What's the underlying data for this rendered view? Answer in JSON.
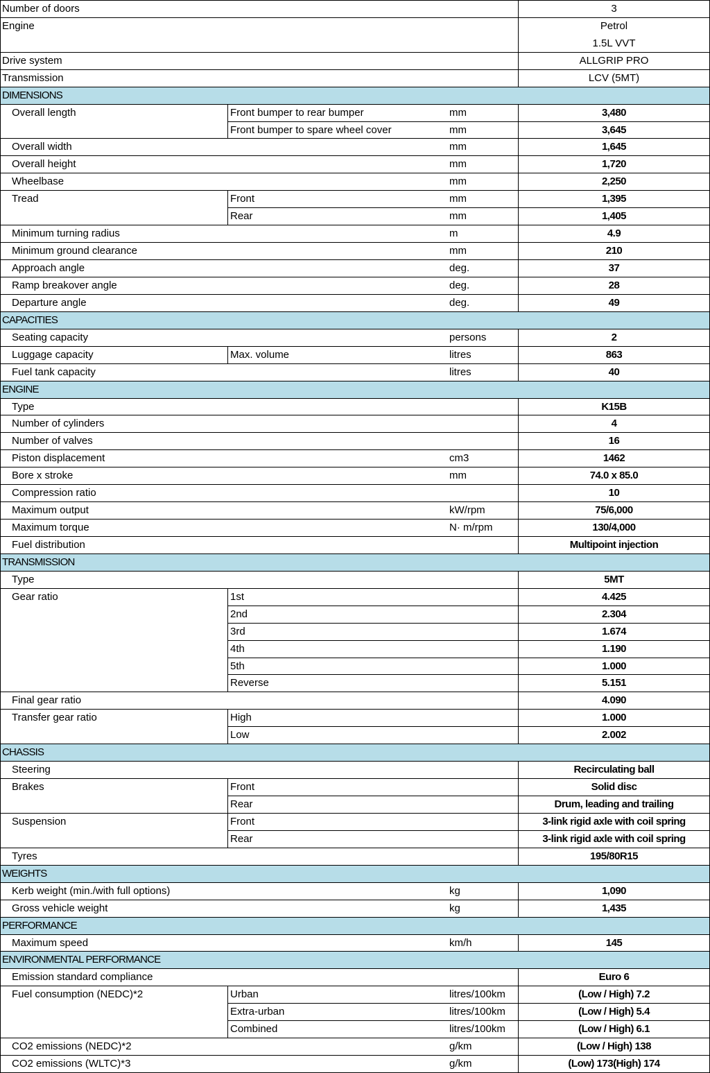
{
  "header_rows": [
    {
      "label": "Number of doors",
      "value": "3"
    },
    {
      "label": "Engine",
      "value": "Petrol",
      "value2": "1.5L VVT"
    },
    {
      "label": "Drive system",
      "value": "ALLGRIP PRO"
    },
    {
      "label": "Transmission",
      "value": "LCV (5MT)"
    }
  ],
  "sections": [
    {
      "title": "DIMENSIONS",
      "items": [
        {
          "label": "Overall length",
          "rows": [
            {
              "sub": "Front bumper to rear bumper",
              "unit": "mm",
              "value": "3,480"
            },
            {
              "sub": "Front bumper to spare wheel cover",
              "unit": "mm",
              "value": "3,645"
            }
          ]
        },
        {
          "label": "Overall width",
          "unit": "mm",
          "value": "1,645"
        },
        {
          "label": "Overall height",
          "unit": "mm",
          "value": "1,720"
        },
        {
          "label": "Wheelbase",
          "unit": "mm",
          "value": "2,250"
        },
        {
          "label": "Tread",
          "rows": [
            {
              "sub": "Front",
              "unit": "mm",
              "value": "1,395"
            },
            {
              "sub": "Rear",
              "unit": "mm",
              "value": "1,405"
            }
          ]
        },
        {
          "label": "Minimum turning radius",
          "unit": "m",
          "value": "4.9"
        },
        {
          "label": "Minimum ground clearance",
          "unit": "mm",
          "value": "210"
        },
        {
          "label": "Approach angle",
          "unit": "deg.",
          "value": "37"
        },
        {
          "label": "Ramp breakover angle",
          "unit": "deg.",
          "value": "28"
        },
        {
          "label": "Departure angle",
          "unit": "deg.",
          "value": "49"
        }
      ]
    },
    {
      "title": "CAPACITIES",
      "items": [
        {
          "label": "Seating capacity",
          "unit": "persons",
          "value": "2"
        },
        {
          "label": "Luggage capacity",
          "rows": [
            {
              "sub": "Max. volume",
              "unit": "litres",
              "value": "863"
            }
          ]
        },
        {
          "label": "Fuel tank capacity",
          "unit": "litres",
          "value": "40"
        }
      ]
    },
    {
      "title": "ENGINE",
      "items": [
        {
          "label": "Type",
          "value": "K15B"
        },
        {
          "label": "Number of cylinders",
          "value": "4"
        },
        {
          "label": "Number of valves",
          "value": "16"
        },
        {
          "label": "Piston displacement",
          "unit": "cm3",
          "value": "1462"
        },
        {
          "label": "Bore x stroke",
          "unit": "mm",
          "value": "74.0 x 85.0"
        },
        {
          "label": "Compression ratio",
          "value": "10"
        },
        {
          "label": "Maximum output",
          "unit": "kW/rpm",
          "value": "75/6,000"
        },
        {
          "label": "Maximum torque",
          "unit": "N· m/rpm",
          "value": "130/4,000"
        },
        {
          "label": "Fuel distribution",
          "value": "Multipoint injection"
        }
      ]
    },
    {
      "title": "TRANSMISSION",
      "items": [
        {
          "label": "Type",
          "value": "5MT"
        },
        {
          "label": "Gear ratio",
          "rows": [
            {
              "sub": "1st",
              "value": "4.425"
            },
            {
              "sub": "2nd",
              "value": "2.304"
            },
            {
              "sub": "3rd",
              "value": "1.674"
            },
            {
              "sub": "4th",
              "value": "1.190"
            },
            {
              "sub": "5th",
              "value": "1.000"
            },
            {
              "sub": "Reverse",
              "value": "5.151"
            }
          ]
        },
        {
          "label": "Final gear ratio",
          "value": "4.090"
        },
        {
          "label": "Transfer gear ratio",
          "rows": [
            {
              "sub": "High",
              "value": "1.000"
            },
            {
              "sub": "Low",
              "value": "2.002"
            }
          ]
        }
      ]
    },
    {
      "title": "CHASSIS",
      "items": [
        {
          "label": "Steering",
          "value": "Recirculating ball"
        },
        {
          "label": "Brakes",
          "rows": [
            {
              "sub": "Front",
              "value": "Solid disc"
            },
            {
              "sub": "Rear",
              "value": "Drum, leading and trailing"
            }
          ]
        },
        {
          "label": "Suspension",
          "rows": [
            {
              "sub": "Front",
              "value": "3-link rigid axle with coil spring"
            },
            {
              "sub": "Rear",
              "value": "3-link rigid axle with coil spring"
            }
          ]
        },
        {
          "label": "Tyres",
          "value": "195/80R15"
        }
      ]
    },
    {
      "title": "WEIGHTS",
      "items": [
        {
          "label": "Kerb weight (min./with full options)",
          "unit": "kg",
          "value": "1,090"
        },
        {
          "label": "Gross vehicle weight",
          "unit": "kg",
          "value": "1,435"
        }
      ]
    },
    {
      "title": "PERFORMANCE",
      "items": [
        {
          "label": "Maximum speed",
          "unit": "km/h",
          "value": "145"
        }
      ]
    },
    {
      "title": "ENVIRONMENTAL PERFORMANCE",
      "items": [
        {
          "label": "Emission standard compliance",
          "value": "Euro 6"
        },
        {
          "label": "Fuel consumption (NEDC)*2",
          "rows": [
            {
              "sub": "Urban",
              "unit": "litres/100km",
              "value": "(Low / High) 7.2"
            },
            {
              "sub": "Extra-urban",
              "unit": "litres/100km",
              "value": "(Low / High) 5.4"
            },
            {
              "sub": "Combined",
              "unit": "litres/100km",
              "value": "(Low / High) 6.1"
            }
          ]
        },
        {
          "label": "CO2 emissions (NEDC)*2",
          "unit": "g/km",
          "value": "(Low / High) 138"
        },
        {
          "label": "CO2 emissions (WLTC)*3",
          "unit": "g/km",
          "value": "(Low) 173(High) 174"
        }
      ]
    }
  ]
}
